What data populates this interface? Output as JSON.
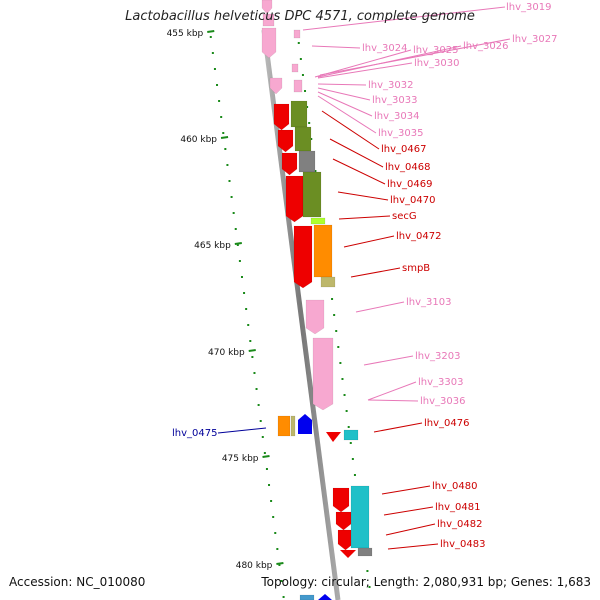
{
  "title": "Lactobacillus helveticus DPC 4571, complete genome",
  "accession": "Accession: NC_010080",
  "summary": "Topology: circular; Length: 2,080,931 bp; Genes: 1,683",
  "colors": {
    "pink": "#f7a8d0",
    "pink_label": "#e878b8",
    "red": "#ee0000",
    "red_label": "#cc0000",
    "olive": "#6b8e23",
    "gray": "#808080",
    "lime": "#adff2f",
    "orange": "#ff8c00",
    "khaki": "#bdb76b",
    "cyan": "#20c0c8",
    "blue": "#0000ee",
    "blue_label": "#000099",
    "tick": "#1a8a1a",
    "backbone": "#8a8a8a"
  },
  "scale": {
    "ticks": [
      "455 kbp",
      "460 kbp",
      "465 kbp",
      "470 kbp",
      "475 kbp",
      "480 kbp"
    ]
  },
  "gene_labels": [
    {
      "label": "lhv_3019",
      "color": "pink"
    },
    {
      "label": "lhv_3027",
      "color": "pink"
    },
    {
      "label": "lhv_3026",
      "color": "pink"
    },
    {
      "label": "lhv_3025",
      "color": "pink"
    },
    {
      "label": "lhv_3024",
      "color": "pink"
    },
    {
      "label": "lhv_3030",
      "color": "pink"
    },
    {
      "label": "lhv_3032",
      "color": "pink"
    },
    {
      "label": "lhv_3033",
      "color": "pink"
    },
    {
      "label": "lhv_3034",
      "color": "pink"
    },
    {
      "label": "lhv_3035",
      "color": "pink"
    },
    {
      "label": "lhv_0467",
      "color": "red"
    },
    {
      "label": "lhv_0468",
      "color": "red"
    },
    {
      "label": "lhv_0469",
      "color": "red"
    },
    {
      "label": "lhv_0470",
      "color": "red"
    },
    {
      "label": "secG",
      "color": "red"
    },
    {
      "label": "lhv_0472",
      "color": "red"
    },
    {
      "label": "smpB",
      "color": "red"
    },
    {
      "label": "lhv_3103",
      "color": "pink"
    },
    {
      "label": "lhv_3203",
      "color": "pink"
    },
    {
      "label": "lhv_3303",
      "color": "pink"
    },
    {
      "label": "lhv_3036",
      "color": "pink"
    },
    {
      "label": "lhv_0476",
      "color": "red"
    },
    {
      "label": "lhv_0475",
      "color": "blue"
    },
    {
      "label": "lhv_0480",
      "color": "red"
    },
    {
      "label": "lhv_0481",
      "color": "red"
    },
    {
      "label": "lhv_0482",
      "color": "red"
    },
    {
      "label": "lhv_0483",
      "color": "red"
    }
  ]
}
